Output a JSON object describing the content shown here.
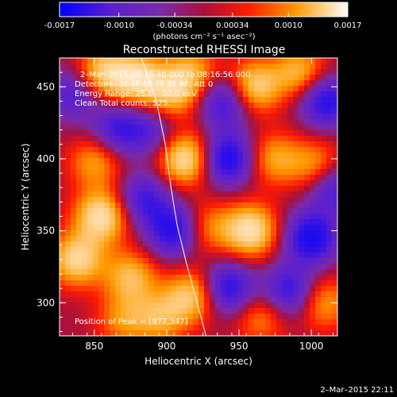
{
  "chart_data": {
    "type": "heatmap",
    "title": "Reconstructed RHESSI Image",
    "xlabel": "Heliocentric X (arcsec)",
    "ylabel": "Heliocentric Y (arcsec)",
    "xlim": [
      826,
      1018
    ],
    "ylim": [
      277,
      470
    ],
    "x_ticks": [
      850,
      900,
      950,
      1000
    ],
    "y_ticks": [
      300,
      350,
      400,
      450
    ],
    "colorbar": {
      "range": [
        -0.0017,
        0.0017
      ],
      "tick_values": [
        -0.0017,
        -0.001,
        -0.00034,
        0.00034,
        0.001,
        0.0017
      ],
      "tick_labels": [
        "-0.0017",
        "-0.0010",
        "-0.00034",
        "0.00034",
        "0.0010",
        "0.0017"
      ],
      "unit_label": "(photons cm⁻² s⁻¹ asec⁻²)"
    },
    "annotations": {
      "time_range": "2–Mar–2015 08:16:40.000 to 08:16:56.000",
      "detectors": "Detectors: 3F 5F 6F 7F 8F 9F, Att 0",
      "energy": "Energy Range: 25.0 – 50.0 keV",
      "clean_counts": "Clean     Total counts: 525.",
      "peak": "Position of Peak = [977,347]"
    },
    "footer_date": "2–Mar–2015 22:11",
    "limb_curve": [
      [
        881,
        475
      ],
      [
        893,
        440
      ],
      [
        899,
        410
      ],
      [
        903,
        380
      ],
      [
        907,
        355
      ],
      [
        913,
        330
      ],
      [
        921,
        300
      ],
      [
        929,
        270
      ]
    ],
    "blobs": [
      {
        "x": 835,
        "y": 445,
        "w": -0.6
      },
      {
        "x": 856,
        "y": 460,
        "w": 0.8
      },
      {
        "x": 866,
        "y": 420,
        "w": -0.7
      },
      {
        "x": 851,
        "y": 398,
        "w": 0.6
      },
      {
        "x": 855,
        "y": 360,
        "w": 1.0
      },
      {
        "x": 838,
        "y": 330,
        "w": 0.9
      },
      {
        "x": 875,
        "y": 318,
        "w": 0.7
      },
      {
        "x": 880,
        "y": 455,
        "w": 0.9
      },
      {
        "x": 904,
        "y": 445,
        "w": 0.7
      },
      {
        "x": 913,
        "y": 400,
        "w": 1.0
      },
      {
        "x": 890,
        "y": 420,
        "w": -0.5
      },
      {
        "x": 884,
        "y": 372,
        "w": -0.7
      },
      {
        "x": 905,
        "y": 350,
        "w": -0.9
      },
      {
        "x": 940,
        "y": 440,
        "w": -0.8
      },
      {
        "x": 918,
        "y": 460,
        "w": 0.6
      },
      {
        "x": 960,
        "y": 450,
        "w": 0.9
      },
      {
        "x": 992,
        "y": 460,
        "w": 0.7
      },
      {
        "x": 942,
        "y": 400,
        "w": -1.0
      },
      {
        "x": 974,
        "y": 400,
        "w": 0.6
      },
      {
        "x": 1003,
        "y": 395,
        "w": 0.6
      },
      {
        "x": 958,
        "y": 350,
        "w": 1.0
      },
      {
        "x": 1000,
        "y": 345,
        "w": -1.0
      },
      {
        "x": 928,
        "y": 352,
        "w": 0.5
      },
      {
        "x": 942,
        "y": 310,
        "w": -0.9
      },
      {
        "x": 985,
        "y": 308,
        "w": -0.8
      },
      {
        "x": 965,
        "y": 290,
        "w": 0.5
      },
      {
        "x": 1008,
        "y": 300,
        "w": 0.6
      },
      {
        "x": 1010,
        "y": 440,
        "w": -0.9
      },
      {
        "x": 918,
        "y": 305,
        "w": 0.8
      },
      {
        "x": 896,
        "y": 290,
        "w": 0.6
      },
      {
        "x": 870,
        "y": 288,
        "w": 0.5
      },
      {
        "x": 1015,
        "y": 380,
        "w": -0.7
      }
    ]
  }
}
